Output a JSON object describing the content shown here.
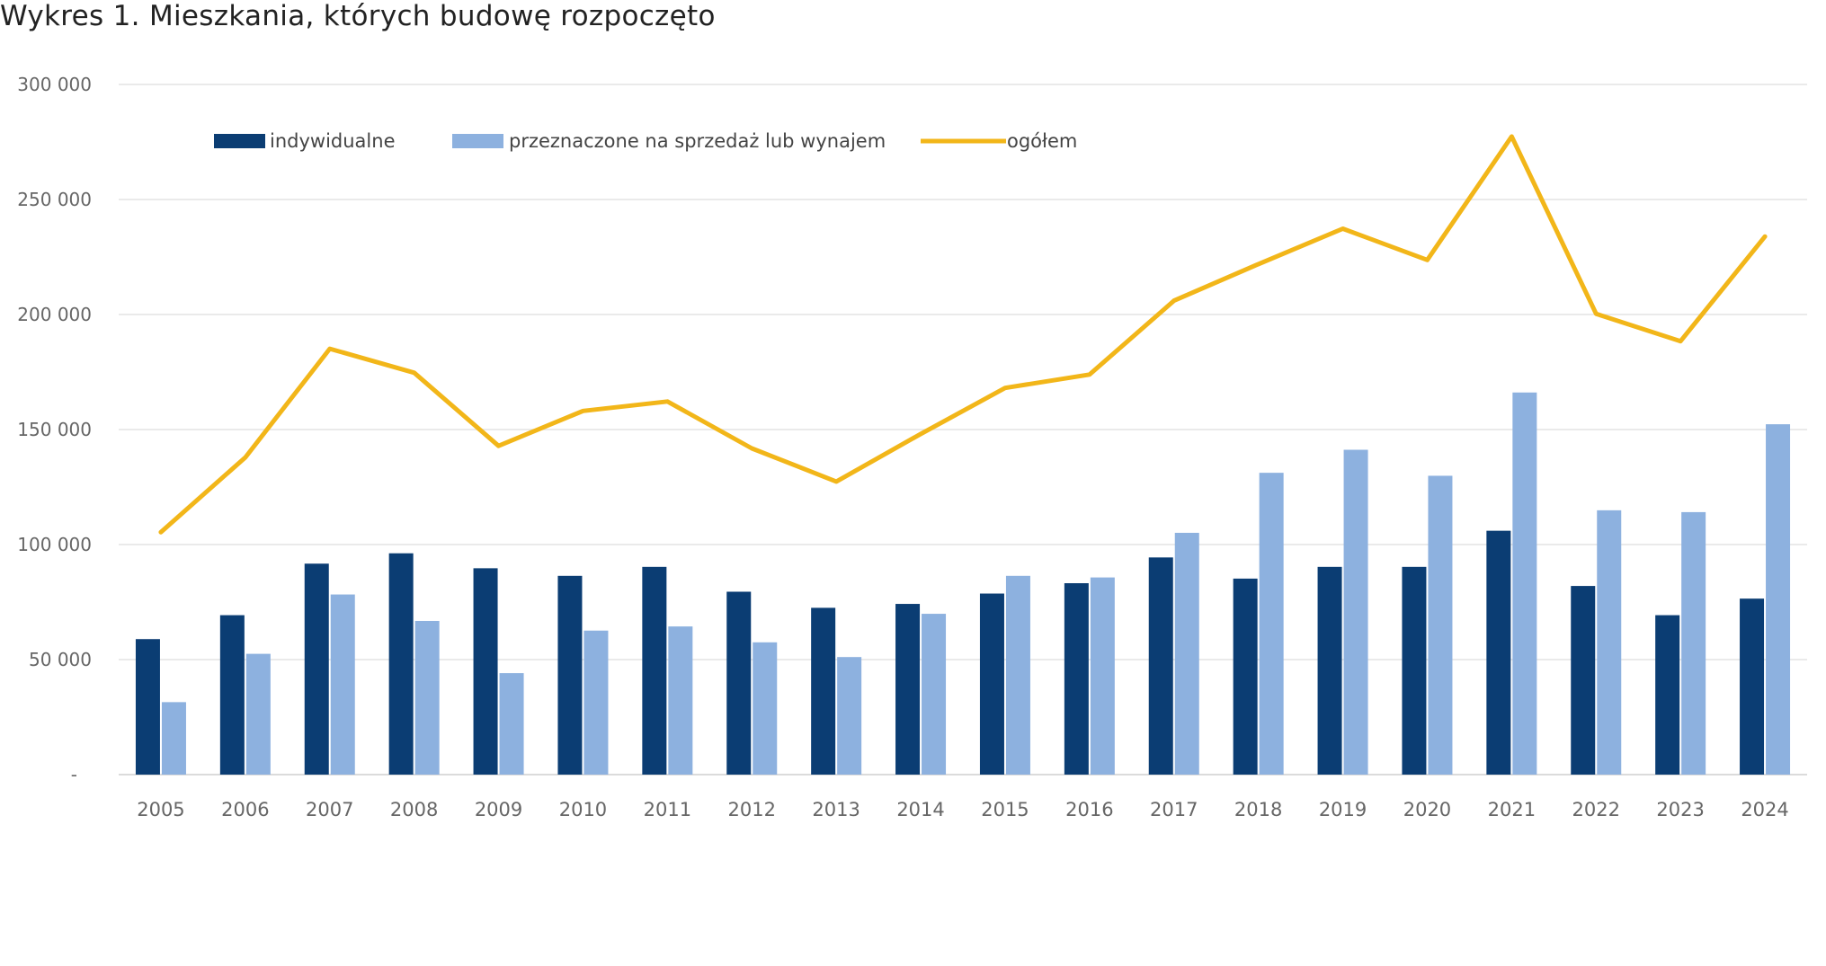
{
  "chart_data": {
    "type": "bar",
    "title": "Wykres 1. Mieszkania, których budowę rozpoczęto",
    "xlabel": "",
    "ylabel": "",
    "ylim": [
      0,
      300000
    ],
    "yticks": [
      {
        "value": 0,
        "label": "-"
      },
      {
        "value": 50000,
        "label": "50 000"
      },
      {
        "value": 100000,
        "label": "100 000"
      },
      {
        "value": 150000,
        "label": "150 000"
      },
      {
        "value": 200000,
        "label": "200 000"
      },
      {
        "value": 250000,
        "label": "250 000"
      },
      {
        "value": 300000,
        "label": "300 000"
      }
    ],
    "grid": true,
    "legend_position": "top-left",
    "categories": [
      "2005",
      "2006",
      "2007",
      "2008",
      "2009",
      "2010",
      "2011",
      "2012",
      "2013",
      "2014",
      "2015",
      "2016",
      "2017",
      "2018",
      "2019",
      "2020",
      "2021",
      "2022",
      "2023",
      "2024"
    ],
    "series": [
      {
        "name": "indywidualne",
        "type": "bar",
        "color": "#0b3d73",
        "values": [
          58900,
          69300,
          91700,
          96200,
          89700,
          86400,
          90300,
          79500,
          72500,
          74200,
          78700,
          83200,
          94400,
          85200,
          90300,
          90300,
          106000,
          82000,
          69300,
          76500
        ]
      },
      {
        "name": "przeznaczone na sprzedaż lub wynajem",
        "type": "bar",
        "color": "#8db1df",
        "values": [
          31500,
          52500,
          78300,
          66800,
          44100,
          62600,
          64400,
          57500,
          51100,
          69900,
          86400,
          85700,
          105100,
          131200,
          141200,
          129900,
          166100,
          114900,
          114100,
          152300
        ]
      },
      {
        "name": "ogółem",
        "type": "line",
        "color": "#f2b619",
        "values": [
          105400,
          137900,
          185100,
          174700,
          142900,
          158100,
          162200,
          141800,
          127400,
          148100,
          168100,
          173900,
          206000,
          221900,
          237300,
          223700,
          277400,
          200300,
          188400,
          233900
        ]
      }
    ]
  }
}
